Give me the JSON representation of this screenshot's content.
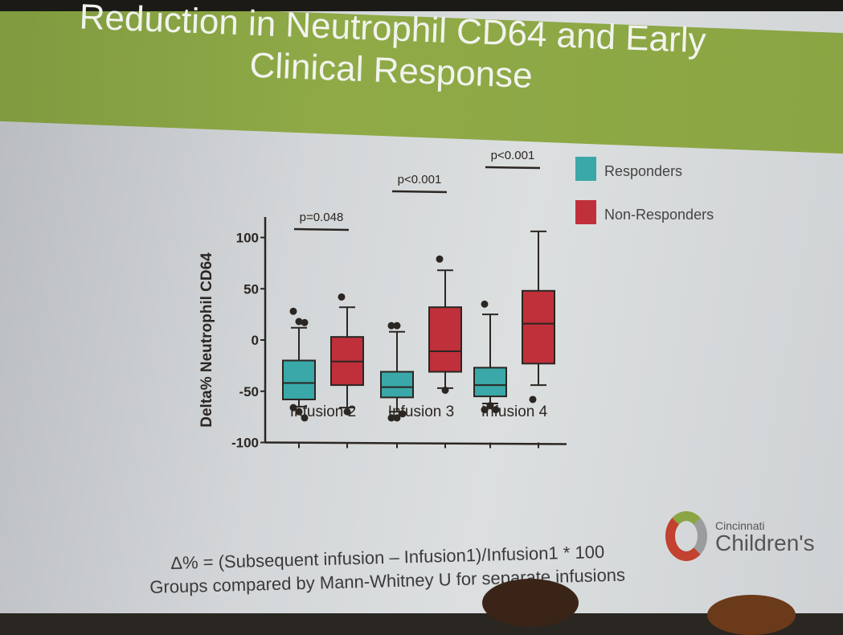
{
  "slide": {
    "title_line1": "Reduction in Neutrophil CD64 and Early",
    "title_line2": "Clinical Response",
    "footnote1": "Δ% = (Subsequent infusion – Infusion1)/Infusion1 * 100",
    "footnote2": "Groups compared by Mann-Whitney U for separate infusions",
    "logo_small": "Cincinnati",
    "logo_big": "Children's"
  },
  "chart_data": {
    "type": "box",
    "ylabel": "Delta% Neutrophil CD64",
    "ylim": [
      -100,
      120
    ],
    "yticks": [
      100,
      50,
      0,
      -50,
      -100
    ],
    "categories": [
      "Infusion 2",
      "Infusion 3",
      "Infusion 4"
    ],
    "legend": {
      "placement": "right",
      "entries": [
        {
          "name": "Responders",
          "color": "#3aa8a8"
        },
        {
          "name": "Non-Responders",
          "color": "#c0303a"
        }
      ]
    },
    "pvalues": [
      "p=0.048",
      "p<0.001",
      "p<0.001"
    ],
    "series": [
      {
        "name": "Responders",
        "boxes": [
          {
            "low": -65,
            "q1": -58,
            "median": -42,
            "q3": -20,
            "high": 12,
            "outliers": [
              28,
              18,
              17,
              -66,
              -70,
              -76
            ]
          },
          {
            "low": -70,
            "q1": -56,
            "median": -46,
            "q3": -31,
            "high": 8,
            "outliers": [
              14,
              14,
              -72,
              -76,
              -76
            ]
          },
          {
            "low": -62,
            "q1": -55,
            "median": -44,
            "q3": -27,
            "high": 25,
            "outliers": [
              35,
              -64,
              -68,
              -68
            ]
          }
        ]
      },
      {
        "name": "Non-Responders",
        "boxes": [
          {
            "low": -66,
            "q1": -44,
            "median": -21,
            "q3": 3,
            "high": 32,
            "outliers": [
              42,
              -70
            ]
          },
          {
            "low": -47,
            "q1": -31,
            "median": -11,
            "q3": 32,
            "high": 68,
            "outliers": [
              79,
              -49
            ]
          },
          {
            "low": -44,
            "q1": -23,
            "median": 16,
            "q3": 48,
            "high": 106,
            "outliers": [
              -58
            ]
          }
        ]
      }
    ]
  }
}
